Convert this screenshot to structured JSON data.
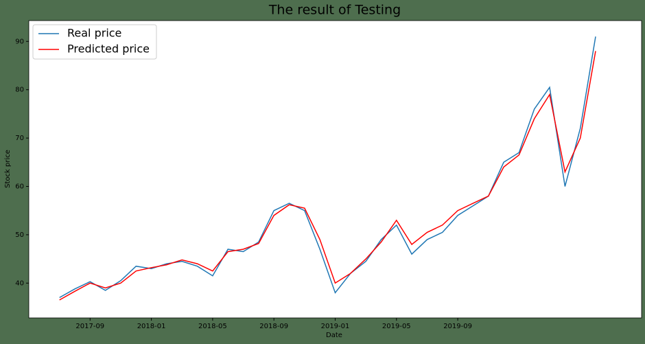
{
  "chart_data": {
    "type": "line",
    "title": "The result of Testing",
    "x_label": "Date",
    "y_label": "Stock price",
    "x": [
      "2017-07",
      "2017-08",
      "2017-09",
      "2017-10",
      "2017-11",
      "2017-12",
      "2018-01",
      "2018-02",
      "2018-03",
      "2018-04",
      "2018-05",
      "2018-06",
      "2018-07",
      "2018-08",
      "2018-09",
      "2018-10",
      "2018-11",
      "2018-12",
      "2019-01",
      "2019-02",
      "2019-03",
      "2019-04",
      "2019-05",
      "2019-06",
      "2019-07",
      "2019-08",
      "2019-09",
      "2019-10",
      "2019-11",
      "2019-12",
      "2020-01",
      "2020-02",
      "2020-03",
      "2020-04",
      "2020-05",
      "2020-06"
    ],
    "series": [
      {
        "name": "Real price",
        "color": "#1f77b4",
        "values": [
          37,
          38.8,
          40.3,
          38.5,
          40.5,
          43.5,
          43,
          44,
          44.5,
          43.5,
          41.5,
          47,
          46.5,
          48.5,
          55,
          56.5,
          55,
          47,
          38,
          42,
          44.5,
          49,
          52,
          46,
          49,
          50.5,
          54,
          56,
          58,
          65,
          67,
          76,
          80.5,
          60,
          72,
          91
        ]
      },
      {
        "name": "Predicted price",
        "color": "#ff0000",
        "values": [
          36.5,
          38.3,
          40,
          39,
          40,
          42.5,
          43.2,
          43.8,
          44.8,
          44,
          42.5,
          46.5,
          47,
          48.2,
          54,
          56.2,
          55.5,
          49,
          40,
          42,
          45,
          48.5,
          53,
          48,
          50.5,
          52,
          55,
          56.5,
          58,
          64,
          66.5,
          74,
          79,
          63,
          70,
          88
        ]
      }
    ],
    "xlim": [
      "2017-05",
      "2020-09"
    ],
    "xticks": [
      "2017-09",
      "2018-01",
      "2018-05",
      "2018-09",
      "2019-01",
      "2019-05",
      "2019-09"
    ],
    "ylim": [
      32.8,
      94.3
    ],
    "yticks": [
      40,
      50,
      60,
      70,
      80,
      90
    ],
    "legend": "upper left",
    "grid": false
  }
}
